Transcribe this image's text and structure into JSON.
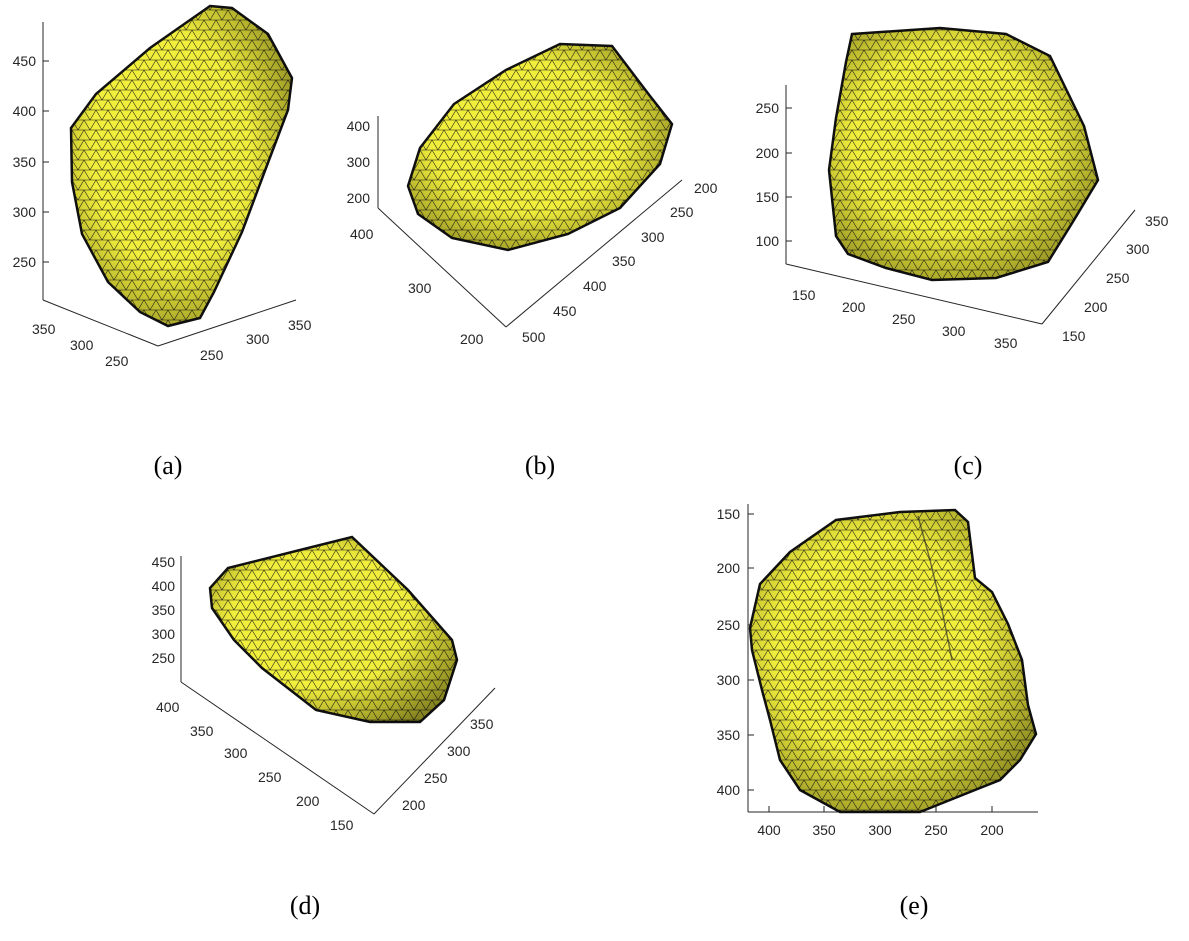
{
  "colors": {
    "mesh_face": "#f2ef3c",
    "mesh_edge": "#1a1a12",
    "axis": "#262626",
    "background": "#ffffff"
  },
  "panels": [
    {
      "caption": "(a)",
      "z_ticks": [
        "450",
        "400",
        "350",
        "300",
        "250"
      ],
      "x_ticks": [
        "350",
        "300",
        "250"
      ],
      "y_ticks": [
        "250",
        "300",
        "350"
      ]
    },
    {
      "caption": "(b)",
      "z_ticks": [
        "400",
        "300",
        "200"
      ],
      "x_ticks": [
        "400",
        "300",
        "200"
      ],
      "y_ticks": [
        "200",
        "250",
        "300",
        "350",
        "400",
        "450",
        "500"
      ]
    },
    {
      "caption": "(c)",
      "z_ticks": [
        "250",
        "200",
        "150",
        "100"
      ],
      "x_ticks": [
        "150",
        "200",
        "250",
        "300",
        "350"
      ],
      "y_ticks": [
        "350",
        "300",
        "250",
        "200",
        "150"
      ]
    },
    {
      "caption": "(d)",
      "z_ticks": [
        "450",
        "400",
        "350",
        "300",
        "250"
      ],
      "x_ticks": [
        "400",
        "350",
        "300",
        "250",
        "200",
        "150"
      ],
      "y_ticks": [
        "350",
        "300",
        "250",
        "200"
      ]
    },
    {
      "caption": "(e)",
      "y_ticks": [
        "150",
        "200",
        "250",
        "300",
        "350",
        "400"
      ],
      "x_ticks": [
        "400",
        "350",
        "300",
        "250",
        "200"
      ]
    }
  ]
}
